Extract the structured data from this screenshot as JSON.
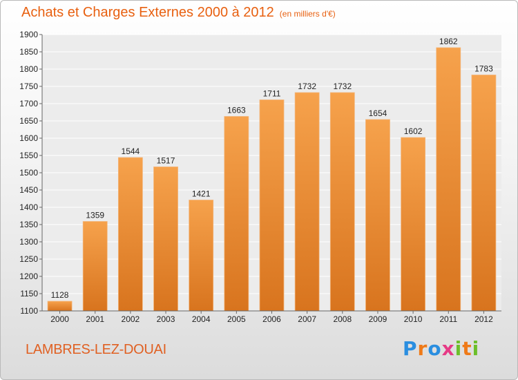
{
  "header": {
    "title": "Achats et Charges Externes 2000 à 2012",
    "subtitle": "(en milliers d'€)"
  },
  "footer": {
    "commune": "LAMBRES-LEZ-DOUAI",
    "brand": "Proxiti"
  },
  "colors": {
    "title": "#e86010",
    "bar_top": "#f6a24c",
    "bar_bottom": "#d8741e",
    "plot_background": "#ececec",
    "grid": "#ffffff"
  },
  "chart_data": {
    "type": "bar",
    "title": "Achats et Charges Externes 2000 à 2012",
    "subtitle": "(en milliers d'€)",
    "xlabel": "",
    "ylabel": "",
    "categories": [
      "2000",
      "2001",
      "2002",
      "2003",
      "2004",
      "2005",
      "2006",
      "2007",
      "2008",
      "2009",
      "2010",
      "2011",
      "2012"
    ],
    "values": [
      1128,
      1359,
      1544,
      1517,
      1421,
      1663,
      1711,
      1732,
      1732,
      1654,
      1602,
      1862,
      1783
    ],
    "ylim": [
      1100,
      1900
    ],
    "yticks": [
      1100,
      1150,
      1200,
      1250,
      1300,
      1350,
      1400,
      1450,
      1500,
      1550,
      1600,
      1650,
      1700,
      1750,
      1800,
      1850,
      1900
    ],
    "grid": true,
    "legend": "none",
    "data_labels": true
  }
}
